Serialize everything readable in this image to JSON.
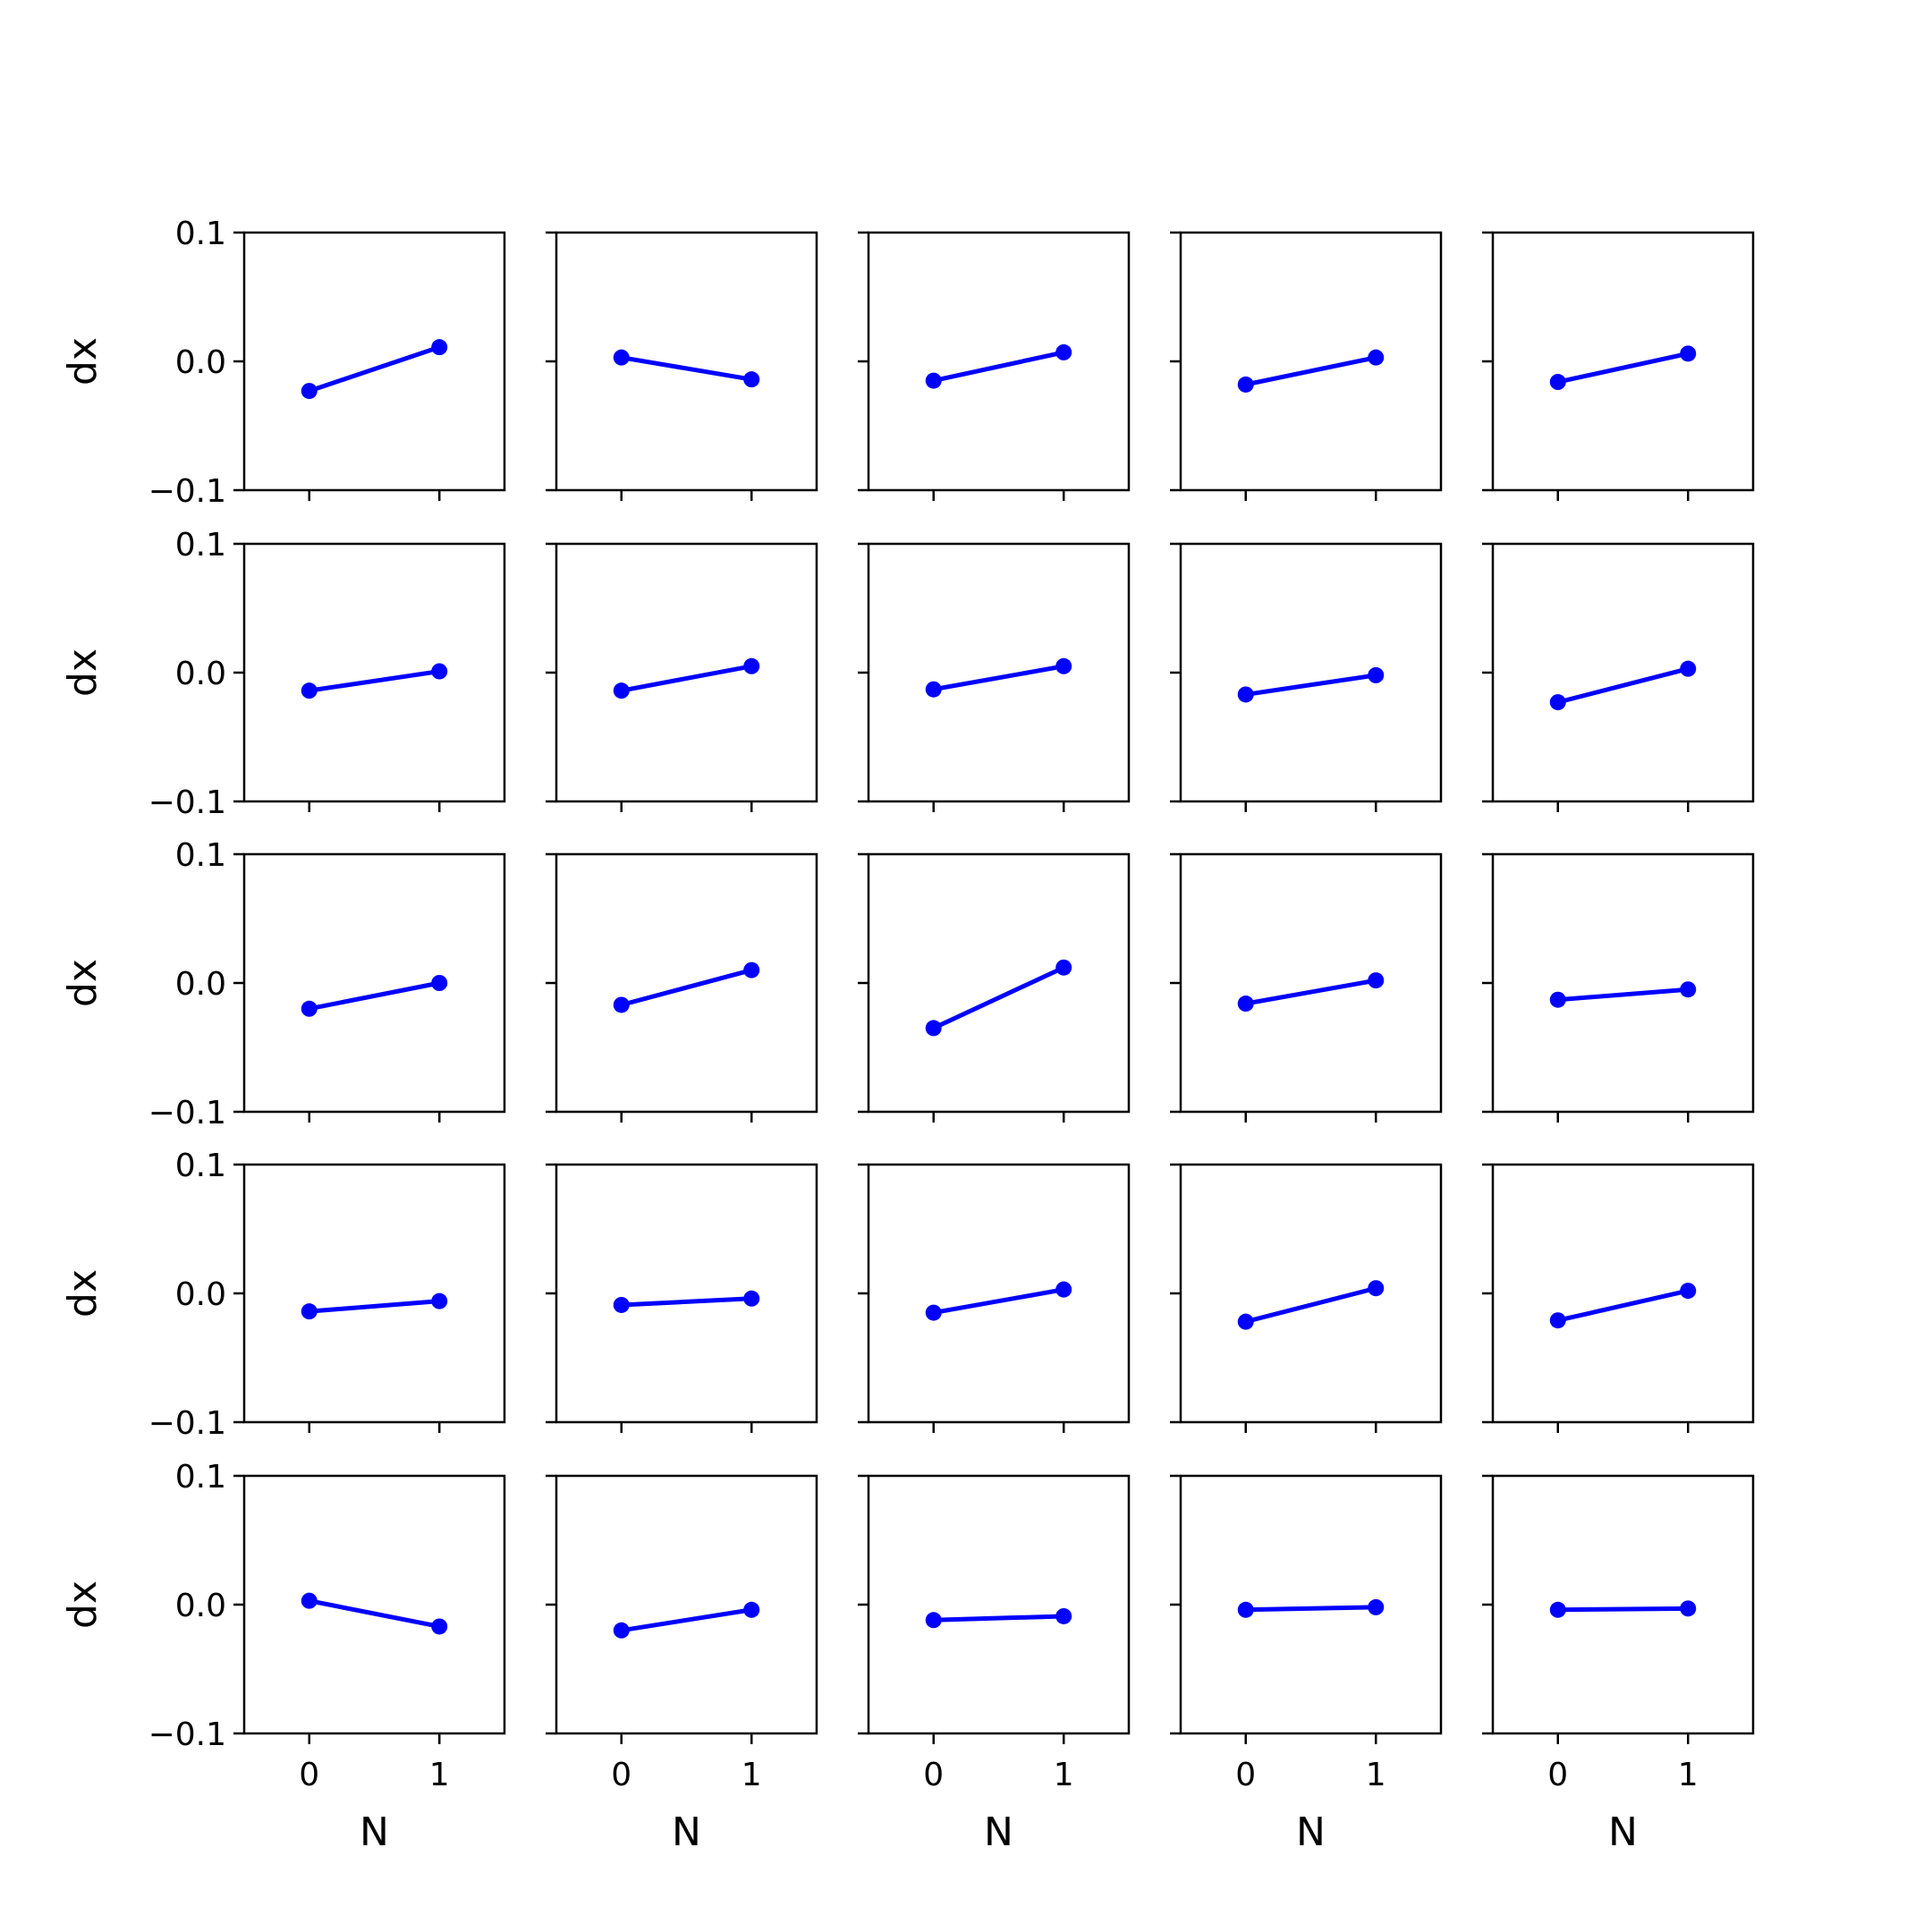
{
  "chart_data": {
    "type": "line",
    "layout": "5x5 grid of small multiples",
    "x_ticks": [
      "0",
      "1"
    ],
    "y_ticks": [
      "−0.1",
      "0.0",
      "0.1"
    ],
    "xlabel": "N",
    "ylabel": "dx",
    "xlim": [
      -0.5,
      1.5
    ],
    "ylim": [
      -0.1,
      0.1
    ],
    "line_color": "#0000ff",
    "marker": "circle",
    "grid": false,
    "panels": [
      {
        "x": [
          0,
          1
        ],
        "y": [
          -0.023,
          0.011
        ]
      },
      {
        "x": [
          0,
          1
        ],
        "y": [
          0.003,
          -0.014
        ]
      },
      {
        "x": [
          0,
          1
        ],
        "y": [
          -0.015,
          0.007
        ]
      },
      {
        "x": [
          0,
          1
        ],
        "y": [
          -0.018,
          0.003
        ]
      },
      {
        "x": [
          0,
          1
        ],
        "y": [
          -0.016,
          0.006
        ]
      },
      {
        "x": [
          0,
          1
        ],
        "y": [
          -0.014,
          0.001
        ]
      },
      {
        "x": [
          0,
          1
        ],
        "y": [
          -0.014,
          0.005
        ]
      },
      {
        "x": [
          0,
          1
        ],
        "y": [
          -0.013,
          0.005
        ]
      },
      {
        "x": [
          0,
          1
        ],
        "y": [
          -0.017,
          -0.002
        ]
      },
      {
        "x": [
          0,
          1
        ],
        "y": [
          -0.023,
          0.003
        ]
      },
      {
        "x": [
          0,
          1
        ],
        "y": [
          -0.02,
          0.0
        ]
      },
      {
        "x": [
          0,
          1
        ],
        "y": [
          -0.017,
          0.01
        ]
      },
      {
        "x": [
          0,
          1
        ],
        "y": [
          -0.035,
          0.012
        ]
      },
      {
        "x": [
          0,
          1
        ],
        "y": [
          -0.016,
          0.002
        ]
      },
      {
        "x": [
          0,
          1
        ],
        "y": [
          -0.013,
          -0.005
        ]
      },
      {
        "x": [
          0,
          1
        ],
        "y": [
          -0.014,
          -0.006
        ]
      },
      {
        "x": [
          0,
          1
        ],
        "y": [
          -0.009,
          -0.004
        ]
      },
      {
        "x": [
          0,
          1
        ],
        "y": [
          -0.015,
          0.003
        ]
      },
      {
        "x": [
          0,
          1
        ],
        "y": [
          -0.022,
          0.004
        ]
      },
      {
        "x": [
          0,
          1
        ],
        "y": [
          -0.021,
          0.002
        ]
      },
      {
        "x": [
          0,
          1
        ],
        "y": [
          0.003,
          -0.017
        ]
      },
      {
        "x": [
          0,
          1
        ],
        "y": [
          -0.02,
          -0.004
        ]
      },
      {
        "x": [
          0,
          1
        ],
        "y": [
          -0.012,
          -0.009
        ]
      },
      {
        "x": [
          0,
          1
        ],
        "y": [
          -0.004,
          -0.002
        ]
      },
      {
        "x": [
          0,
          1
        ],
        "y": [
          -0.004,
          -0.003
        ]
      }
    ]
  }
}
